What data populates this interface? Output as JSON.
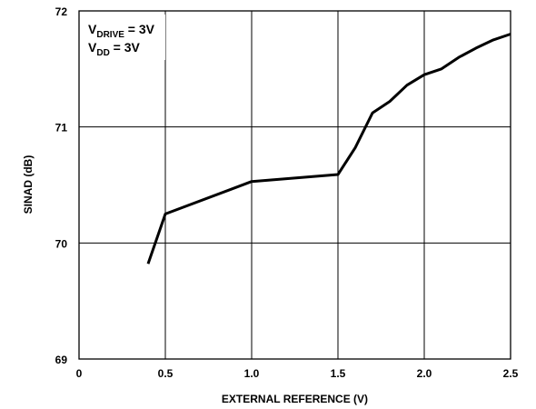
{
  "chart_data": {
    "type": "line",
    "xlabel": "EXTERNAL REFERENCE (V)",
    "ylabel": "SINAD (dB)",
    "xlim": [
      0,
      2.5
    ],
    "ylim": [
      69,
      72
    ],
    "x_ticks": [
      0,
      0.5,
      1.0,
      1.5,
      2.0,
      2.5
    ],
    "x_tick_labels": [
      "0",
      "0.5",
      "1.0",
      "1.5",
      "2.0",
      "2.5"
    ],
    "y_ticks": [
      69,
      70,
      71,
      72
    ],
    "y_tick_labels": [
      "69",
      "70",
      "71",
      "72"
    ],
    "grid": true,
    "annotation": {
      "line1": {
        "main": "V",
        "sub": "DRIVE",
        "rest": " = 3V"
      },
      "line2": {
        "main": "V",
        "sub": "DD",
        "rest": " = 3V"
      }
    },
    "series": [
      {
        "x": [
          0.4,
          0.5,
          1.0,
          1.5,
          1.6,
          1.7,
          1.8,
          1.9,
          2.0,
          2.1,
          2.2,
          2.3,
          2.4,
          2.5
        ],
        "y": [
          69.82,
          70.25,
          70.53,
          70.59,
          70.82,
          71.12,
          71.22,
          71.36,
          71.45,
          71.5,
          71.6,
          71.68,
          71.75,
          71.8
        ]
      }
    ]
  }
}
